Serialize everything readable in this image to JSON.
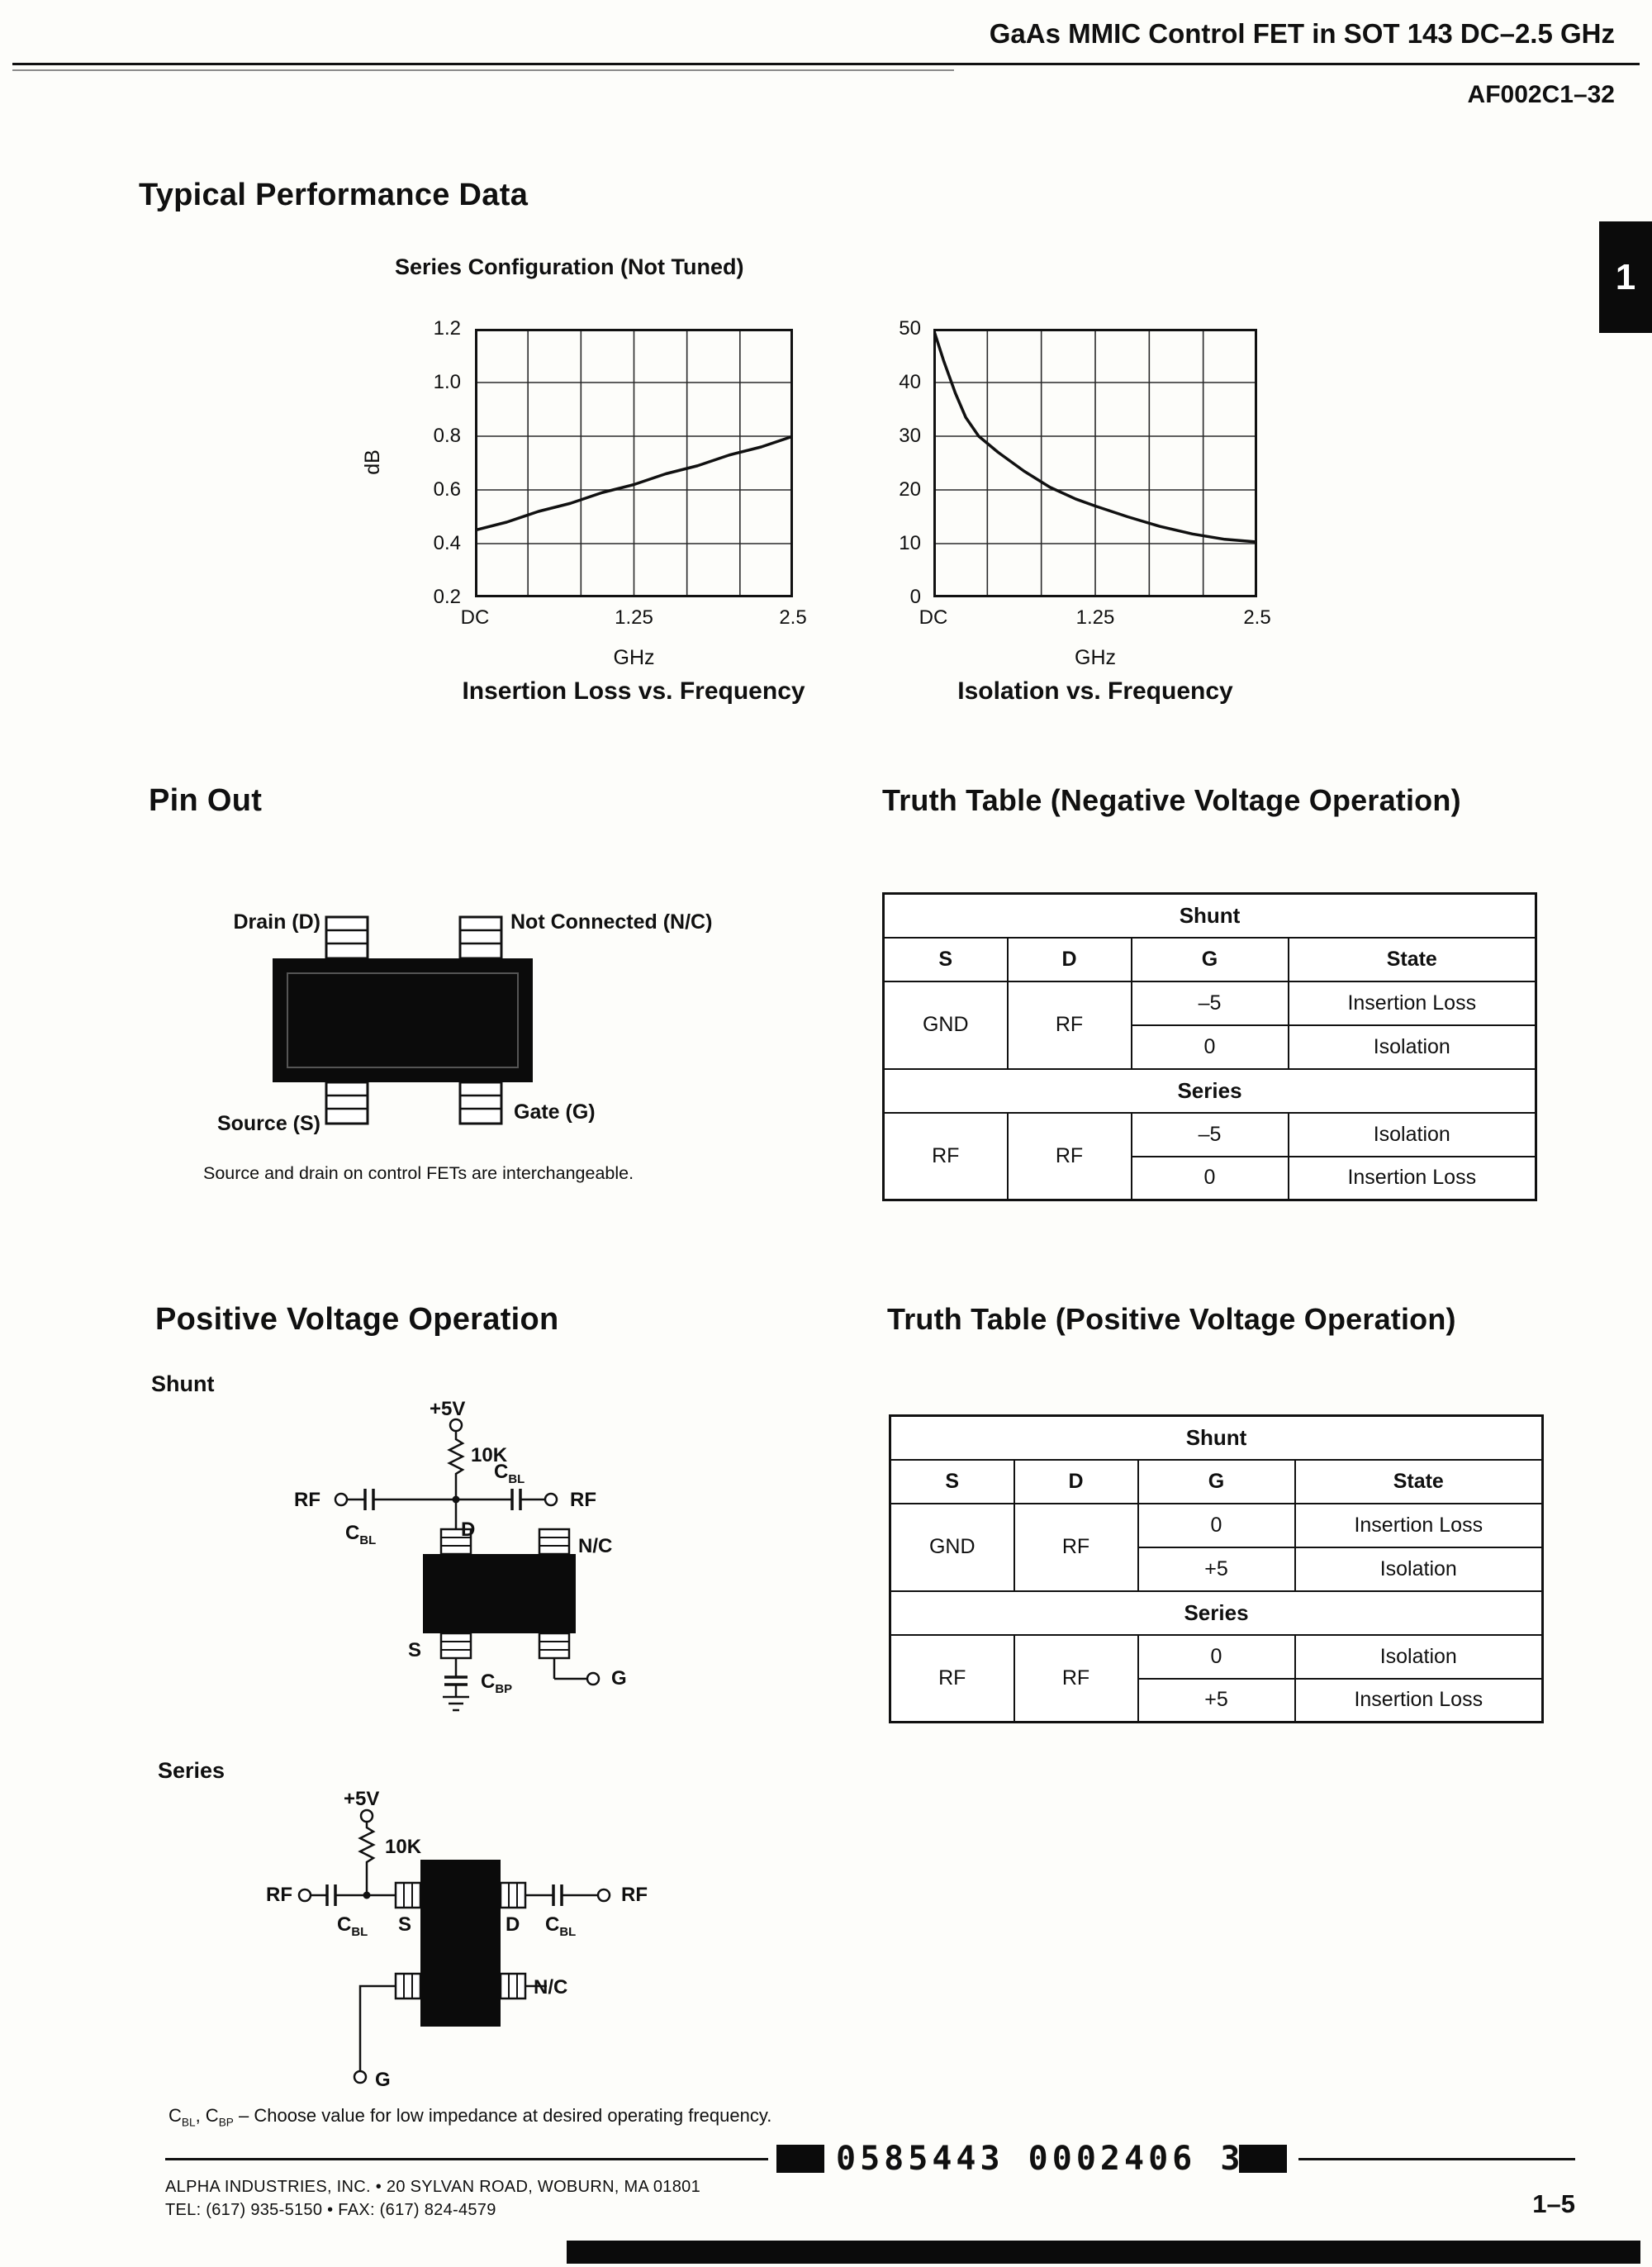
{
  "header": {
    "doc_title": "GaAs MMIC Control FET in SOT 143 DC–2.5 GHz",
    "part_number": "AF002C1–32",
    "side_tab": "1"
  },
  "performance": {
    "heading": "Typical Performance Data",
    "subheading": "Series Configuration (Not Tuned)"
  },
  "chart_data": [
    {
      "type": "line",
      "title": "Insertion Loss vs. Frequency",
      "xlabel": "GHz",
      "ylabel": "dB",
      "x_ticks": [
        "DC",
        "1.25",
        "2.5"
      ],
      "y_ticks": [
        "1.2",
        "1.0",
        "0.8",
        "0.6",
        "0.4",
        "0.2"
      ],
      "x_range": [
        0,
        2.5
      ],
      "y_range": [
        0.2,
        1.2
      ],
      "grid_cols": 6,
      "grid_rows": 5,
      "grid": true,
      "legend": "none",
      "points": [
        [
          0,
          0.45
        ],
        [
          0.25,
          0.48
        ],
        [
          0.5,
          0.52
        ],
        [
          0.75,
          0.55
        ],
        [
          1.0,
          0.59
        ],
        [
          1.25,
          0.62
        ],
        [
          1.5,
          0.66
        ],
        [
          1.75,
          0.69
        ],
        [
          2.0,
          0.73
        ],
        [
          2.25,
          0.76
        ],
        [
          2.5,
          0.8
        ]
      ]
    },
    {
      "type": "line",
      "title": "Isolation vs. Frequency",
      "xlabel": "GHz",
      "ylabel": "",
      "x_ticks": [
        "DC",
        "1.25",
        "2.5"
      ],
      "y_ticks": [
        "50",
        "40",
        "30",
        "20",
        "10",
        "0"
      ],
      "x_range": [
        0,
        2.5
      ],
      "y_range": [
        0,
        50
      ],
      "grid_cols": 6,
      "grid_rows": 5,
      "grid": true,
      "legend": "none",
      "points": [
        [
          0,
          50
        ],
        [
          0.08,
          44
        ],
        [
          0.17,
          38
        ],
        [
          0.25,
          33.5
        ],
        [
          0.35,
          30
        ],
        [
          0.5,
          27
        ],
        [
          0.7,
          23.5
        ],
        [
          0.9,
          20.5
        ],
        [
          1.1,
          18.3
        ],
        [
          1.25,
          17
        ],
        [
          1.5,
          15
        ],
        [
          1.75,
          13.2
        ],
        [
          2.0,
          11.8
        ],
        [
          2.25,
          10.8
        ],
        [
          2.5,
          10.3
        ]
      ]
    }
  ],
  "pinout": {
    "heading": "Pin Out",
    "drain": "Drain (D)",
    "nc": "Not Connected (N/C)",
    "source": "Source (S)",
    "gate": "Gate (G)",
    "note": "Source and drain on control FETs are interchangeable."
  },
  "tt_neg": {
    "heading": "Truth Table (Negative Voltage Operation)",
    "columns": [
      "S",
      "D",
      "G",
      "State"
    ],
    "shunt": {
      "label": "Shunt",
      "s": "GND",
      "d": "RF",
      "rows": [
        {
          "g": "–5",
          "state": "Insertion Loss"
        },
        {
          "g": "0",
          "state": "Isolation"
        }
      ]
    },
    "series": {
      "label": "Series",
      "s": "RF",
      "d": "RF",
      "rows": [
        {
          "g": "–5",
          "state": "Isolation"
        },
        {
          "g": "0",
          "state": "Insertion Loss"
        }
      ]
    }
  },
  "tt_pos": {
    "heading": "Truth Table (Positive Voltage Operation)",
    "columns": [
      "S",
      "D",
      "G",
      "State"
    ],
    "shunt": {
      "label": "Shunt",
      "s": "GND",
      "d": "RF",
      "rows": [
        {
          "g": "0",
          "state": "Insertion Loss"
        },
        {
          "g": "+5",
          "state": "Isolation"
        }
      ]
    },
    "series": {
      "label": "Series",
      "s": "RF",
      "d": "RF",
      "rows": [
        {
          "g": "0",
          "state": "Isolation"
        },
        {
          "g": "+5",
          "state": "Insertion Loss"
        }
      ]
    }
  },
  "positive_op": {
    "heading": "Positive Voltage Operation",
    "shunt_label": "Shunt",
    "series_label": "Series"
  },
  "cap": {
    "c": "C",
    "bl": "BL",
    "bp": "BP"
  },
  "circuit": {
    "vcc": "+5V",
    "res": "10K",
    "rf": "RF",
    "d": "D",
    "s": "S",
    "g": "G",
    "nc": "N/C"
  },
  "footnote": {
    "c1": "C",
    "s1": "BL",
    "mid": ", C",
    "s2": "BP",
    "rest": " – Choose value for low impedance at desired operating frequency."
  },
  "footer": {
    "company": "ALPHA INDUSTRIES, INC. • 20 SYLVAN ROAD, WOBURN, MA 01801",
    "contact": "TEL: (617) 935-5150 • FAX: (617) 824-4579",
    "barcode": "0585443 0002406 311",
    "page": "1–5"
  }
}
